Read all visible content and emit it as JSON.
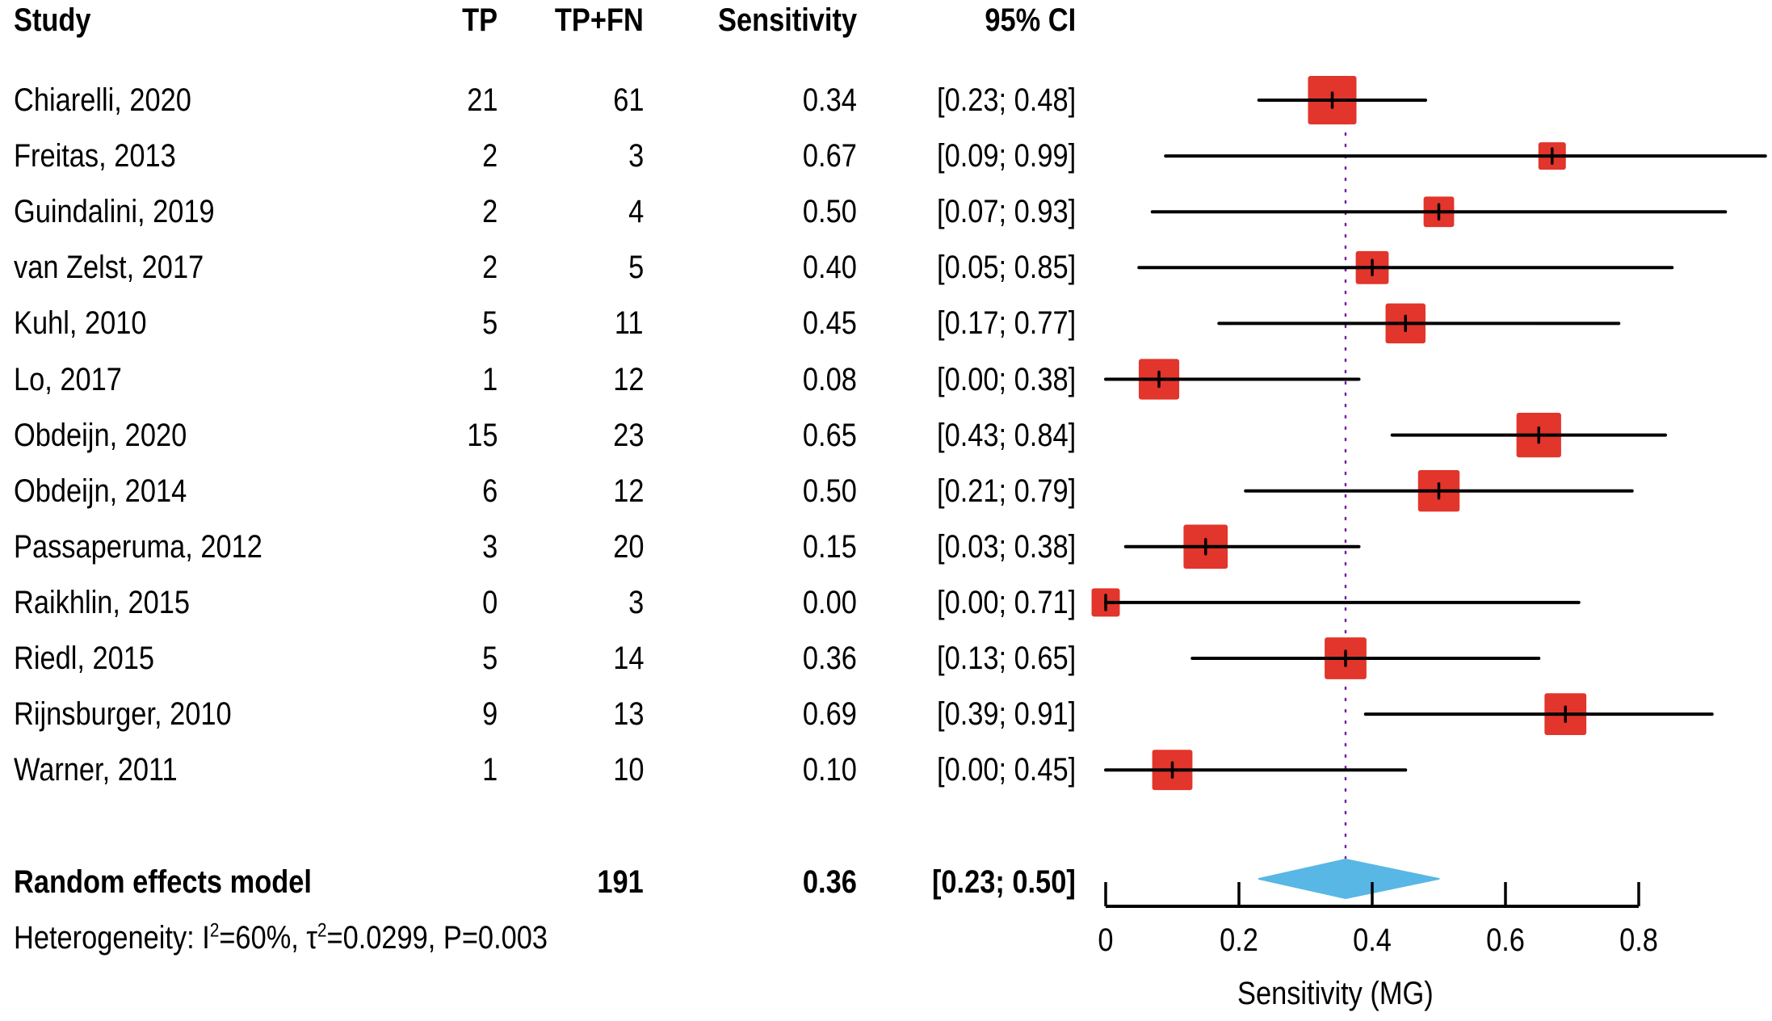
{
  "chart_data": {
    "type": "forest",
    "title": "",
    "columns": [
      "Study",
      "TP",
      "TP+FN",
      "Sensitivity",
      "95% CI"
    ],
    "studies": [
      {
        "study": "Chiarelli, 2020",
        "tp": "21",
        "total": "61",
        "sens_label": "0.34",
        "ci_label": "[0.23; 0.48]",
        "sens": 0.34,
        "lo": 0.23,
        "hi": 0.48,
        "weight": 10.6
      },
      {
        "study": "Freitas, 2013",
        "tp": "2",
        "total": "3",
        "sens_label": "0.67",
        "ci_label": "[0.09; 0.99]",
        "sens": 0.67,
        "lo": 0.09,
        "hi": 0.99,
        "weight": 3.4
      },
      {
        "study": "Guindalini, 2019",
        "tp": "2",
        "total": "4",
        "sens_label": "0.50",
        "ci_label": "[0.07; 0.93]",
        "sens": 0.5,
        "lo": 0.07,
        "hi": 0.93,
        "weight": 4.2
      },
      {
        "study": "van Zelst, 2017",
        "tp": "2",
        "total": "5",
        "sens_label": "0.40",
        "ci_label": "[0.05; 0.85]",
        "sens": 0.4,
        "lo": 0.05,
        "hi": 0.85,
        "weight": 4.9
      },
      {
        "study": "Kuhl, 2010",
        "tp": "5",
        "total": "11",
        "sens_label": "0.45",
        "ci_label": "[0.17; 0.77]",
        "sens": 0.45,
        "lo": 0.17,
        "hi": 0.77,
        "weight": 7.2
      },
      {
        "study": "Lo, 2017",
        "tp": "1",
        "total": "12",
        "sens_label": "0.08",
        "ci_label": "[0.00; 0.38]",
        "sens": 0.08,
        "lo": 0.0,
        "hi": 0.38,
        "weight": 7.4
      },
      {
        "study": "Obdeijn, 2020",
        "tp": "15",
        "total": "23",
        "sens_label": "0.65",
        "ci_label": "[0.43; 0.84]",
        "sens": 0.65,
        "lo": 0.43,
        "hi": 0.84,
        "weight": 9.0
      },
      {
        "study": "Obdeijn, 2014",
        "tp": "6",
        "total": "12",
        "sens_label": "0.50",
        "ci_label": "[0.21; 0.79]",
        "sens": 0.5,
        "lo": 0.21,
        "hi": 0.79,
        "weight": 7.8
      },
      {
        "study": "Passaperuma, 2012",
        "tp": "3",
        "total": "20",
        "sens_label": "0.15",
        "ci_label": "[0.03; 0.38]",
        "sens": 0.15,
        "lo": 0.03,
        "hi": 0.38,
        "weight": 8.8
      },
      {
        "study": "Raikhlin, 2015",
        "tp": "0",
        "total": "3",
        "sens_label": "0.00",
        "ci_label": "[0.00; 0.71]",
        "sens": 0.0,
        "lo": 0.0,
        "hi": 0.71,
        "weight": 3.6
      },
      {
        "study": "Riedl, 2015",
        "tp": "5",
        "total": "14",
        "sens_label": "0.36",
        "ci_label": "[0.13; 0.65]",
        "sens": 0.36,
        "lo": 0.13,
        "hi": 0.65,
        "weight": 7.9
      },
      {
        "study": "Rijnsburger, 2010",
        "tp": "9",
        "total": "13",
        "sens_label": "0.69",
        "ci_label": "[0.39; 0.91]",
        "sens": 0.69,
        "lo": 0.39,
        "hi": 0.91,
        "weight": 7.9
      },
      {
        "study": "Warner, 2011",
        "tp": "1",
        "total": "10",
        "sens_label": "0.10",
        "ci_label": "[0.00; 0.45]",
        "sens": 0.1,
        "lo": 0.0,
        "hi": 0.45,
        "weight": 7.3
      }
    ],
    "pooled": {
      "label": "Random effects model",
      "total": "191",
      "sens_label": "0.36",
      "ci_label": "[0.23; 0.50]",
      "sens": 0.36,
      "lo": 0.23,
      "hi": 0.5
    },
    "heterogeneity": {
      "prefix": "Heterogeneity: I",
      "i2": "=60%, τ",
      "tau2": "=0.0299, P=0.003",
      "sup": "2"
    },
    "xlabel": "Sensitivity (MG)",
    "xlim": [
      0,
      0.8
    ],
    "xticks": [
      0,
      0.2,
      0.4,
      0.6,
      0.8
    ],
    "xtick_labels": [
      "0",
      "0.2",
      "0.4",
      "0.6",
      "0.8"
    ],
    "reference_line": 0.36,
    "colors": {
      "box": "#E2352B",
      "diamond": "#58B7E5",
      "reference": "#7B1FA2",
      "ci": "#000000"
    }
  }
}
